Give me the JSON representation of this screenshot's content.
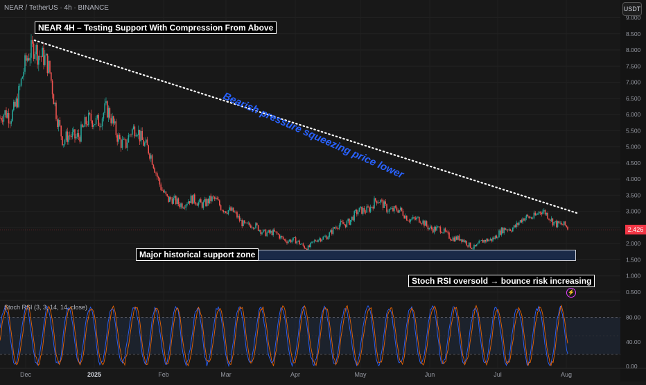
{
  "header": {
    "symbol_title": "NEAR / TetherUS · 4h · BINANCE",
    "currency_label": "USDT"
  },
  "annotations": {
    "title": "NEAR 4H – Testing Support With Compression From Above",
    "trendline_text": "Bearish pressure squeezing price lower",
    "support_text": "Major historical support zone",
    "rsi_text": "Stoch RSI oversold → bounce risk increasing"
  },
  "price_axis": {
    "ticks": [
      "9.000",
      "8.500",
      "8.000",
      "7.500",
      "7.000",
      "6.500",
      "6.000",
      "5.500",
      "5.000",
      "4.500",
      "4.000",
      "3.500",
      "3.000",
      "2.500",
      "2.000",
      "1.500",
      "1.000",
      "0.500"
    ],
    "current_price": "2.426"
  },
  "rsi_axis": {
    "title": "Stoch RSI (3, 3, 14, 14, close)",
    "ticks": [
      "80.00",
      "40.00",
      "0.00"
    ]
  },
  "time_axis": {
    "labels": [
      "Dec",
      "2025",
      "Feb",
      "Mar",
      "Apr",
      "May",
      "Jun",
      "Jul",
      "Aug"
    ]
  },
  "colors": {
    "up": "#26a69a",
    "down": "#ef5350",
    "trendline_text": "#2962ff",
    "price_label": "#f23645",
    "k_line": "#2962ff",
    "d_line": "#ff6d00"
  },
  "chart_data": {
    "type": "line",
    "price_series": {
      "name": "",
      "x": [
        "Dec",
        "2025",
        "Feb",
        "Mar",
        "Apr",
        "May",
        "Jun",
        "Jul",
        "Aug"
      ],
      "keypoints": [
        {
          "t": "Nov 24",
          "y": 5.9
        },
        {
          "t": "Dec 05",
          "y": 8.3
        },
        {
          "t": "Dec 12",
          "y": 7.2
        },
        {
          "t": "Dec 18",
          "y": 5.1
        },
        {
          "t": "Jan 06",
          "y": 6.1
        },
        {
          "t": "Jan 15",
          "y": 5.0
        },
        {
          "t": "Jan 20",
          "y": 5.7
        },
        {
          "t": "Feb 03",
          "y": 3.3
        },
        {
          "t": "Feb 25",
          "y": 3.3
        },
        {
          "t": "Mar 10",
          "y": 2.6
        },
        {
          "t": "Apr 07",
          "y": 1.9
        },
        {
          "t": "May 08",
          "y": 3.3
        },
        {
          "t": "Jun 21",
          "y": 1.9
        },
        {
          "t": "Jul 20",
          "y": 3.0
        },
        {
          "t": "Aug 02",
          "y": 2.426
        }
      ],
      "ylim": [
        0.4,
        9.0
      ]
    },
    "trendline": {
      "from": {
        "t": "Dec 05",
        "y": 8.3
      },
      "to": {
        "t": "Aug 02",
        "y": 2.95
      }
    },
    "support_zone": {
      "from": "Mar 16",
      "to": "Aug 02",
      "y_low": 1.55,
      "y_high": 1.85
    },
    "stoch_rsi": {
      "ylim": [
        0,
        100
      ],
      "levels": [
        80,
        20
      ]
    }
  }
}
